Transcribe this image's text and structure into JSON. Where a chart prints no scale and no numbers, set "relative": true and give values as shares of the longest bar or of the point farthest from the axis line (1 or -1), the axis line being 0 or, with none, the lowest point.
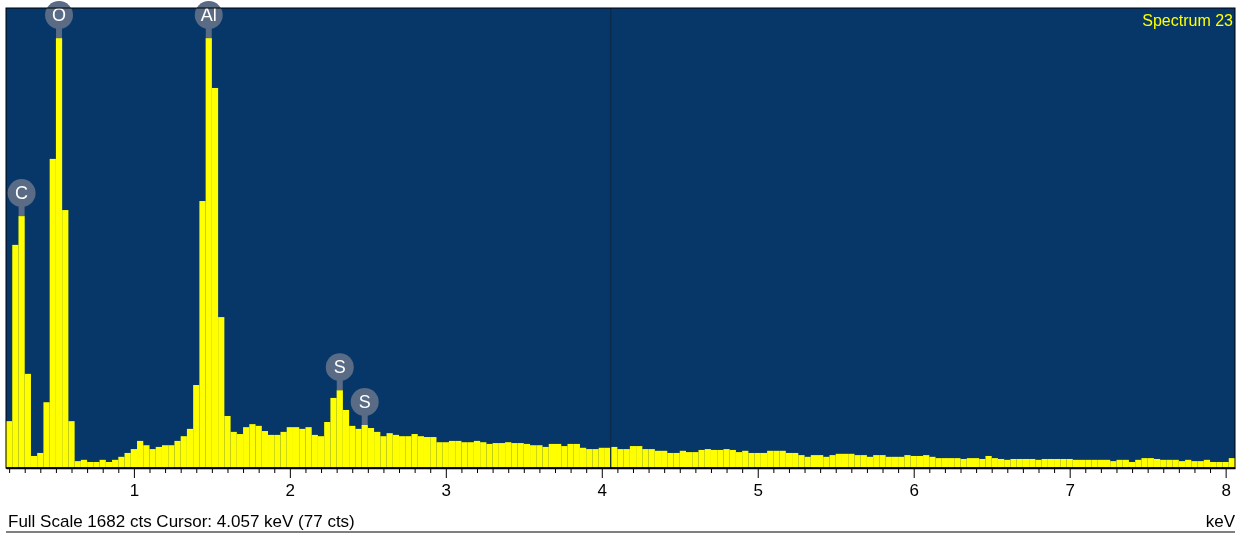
{
  "chart_data": {
    "type": "bar",
    "relative": true,
    "xlabel": "keV",
    "color": "#ffff00",
    "xlim": [
      0.18,
      8.06
    ],
    "xticks": [
      {
        "value": 0.2,
        "label": null
      },
      {
        "value": 0.3,
        "label": null
      },
      {
        "value": 0.4,
        "label": null
      },
      {
        "value": 0.5,
        "label": null
      },
      {
        "value": 0.6,
        "label": null
      },
      {
        "value": 0.7,
        "label": null
      },
      {
        "value": 0.8,
        "label": null
      },
      {
        "value": 0.9,
        "label": null
      },
      1,
      {
        "value": 1.1,
        "label": null
      },
      {
        "value": 1.2,
        "label": null
      },
      {
        "value": 1.3,
        "label": null
      },
      {
        "value": 1.4,
        "label": null
      },
      {
        "value": 1.5,
        "label": null
      },
      {
        "value": 1.6,
        "label": null
      },
      {
        "value": 1.7,
        "label": null
      },
      {
        "value": 1.8,
        "label": null
      },
      {
        "value": 1.9,
        "label": null
      },
      2,
      {
        "value": 2.1,
        "label": null
      },
      {
        "value": 2.2,
        "label": null
      },
      {
        "value": 2.3,
        "label": null
      },
      {
        "value": 2.4,
        "label": null
      },
      {
        "value": 2.5,
        "label": null
      },
      {
        "value": 2.6,
        "label": null
      },
      {
        "value": 2.7,
        "label": null
      },
      {
        "value": 2.8,
        "label": null
      },
      {
        "value": 2.9,
        "label": null
      },
      3,
      {
        "value": 3.1,
        "label": null
      },
      {
        "value": 3.2,
        "label": null
      },
      {
        "value": 3.3,
        "label": null
      },
      {
        "value": 3.4,
        "label": null
      },
      {
        "value": 3.5,
        "label": null
      },
      {
        "value": 3.6,
        "label": null
      },
      {
        "value": 3.7,
        "label": null
      },
      {
        "value": 3.8,
        "label": null
      },
      {
        "value": 3.9,
        "label": null
      },
      4,
      {
        "value": 4.1,
        "label": null
      },
      {
        "value": 4.2,
        "label": null
      },
      {
        "value": 4.3,
        "label": null
      },
      {
        "value": 4.4,
        "label": null
      },
      {
        "value": 4.5,
        "label": null
      },
      {
        "value": 4.6,
        "label": null
      },
      {
        "value": 4.7,
        "label": null
      },
      {
        "value": 4.8,
        "label": null
      },
      {
        "value": 4.9,
        "label": null
      },
      5,
      {
        "value": 5.1,
        "label": null
      },
      {
        "value": 5.2,
        "label": null
      },
      {
        "value": 5.3,
        "label": null
      },
      {
        "value": 5.4,
        "label": null
      },
      {
        "value": 5.5,
        "label": null
      },
      {
        "value": 5.6,
        "label": null
      },
      {
        "value": 5.7,
        "label": null
      },
      {
        "value": 5.8,
        "label": null
      },
      {
        "value": 5.9,
        "label": null
      },
      6,
      {
        "value": 6.1,
        "label": null
      },
      {
        "value": 6.2,
        "label": null
      },
      {
        "value": 6.3,
        "label": null
      },
      {
        "value": 6.4,
        "label": null
      },
      {
        "value": 6.5,
        "label": null
      },
      {
        "value": 6.6,
        "label": null
      },
      {
        "value": 6.7,
        "label": null
      },
      {
        "value": 6.8,
        "label": null
      },
      {
        "value": 6.9,
        "label": null
      },
      7,
      {
        "value": 7.1,
        "label": null
      },
      {
        "value": 7.2,
        "label": null
      },
      {
        "value": 7.3,
        "label": null
      },
      {
        "value": 7.4,
        "label": null
      },
      {
        "value": 7.5,
        "label": null
      },
      {
        "value": 7.6,
        "label": null
      },
      {
        "value": 7.7,
        "label": null
      },
      {
        "value": 7.8,
        "label": null
      },
      {
        "value": 7.9,
        "label": null
      },
      8
    ],
    "x": [
      0.2,
      0.24,
      0.28,
      0.32,
      0.36,
      0.4,
      0.44,
      0.48,
      0.52,
      0.56,
      0.6,
      0.64,
      0.68,
      0.72,
      0.76,
      0.8,
      0.84,
      0.88,
      0.92,
      0.96,
      1.0,
      1.04,
      1.08,
      1.12,
      1.16,
      1.2,
      1.24,
      1.28,
      1.32,
      1.36,
      1.4,
      1.44,
      1.48,
      1.52,
      1.56,
      1.6,
      1.64,
      1.68,
      1.72,
      1.76,
      1.8,
      1.84,
      1.88,
      1.92,
      1.96,
      2.0,
      2.04,
      2.08,
      2.12,
      2.16,
      2.2,
      2.24,
      2.28,
      2.32,
      2.36,
      2.4,
      2.44,
      2.48,
      2.52,
      2.56,
      2.6,
      2.64,
      2.68,
      2.72,
      2.76,
      2.8,
      2.84,
      2.88,
      2.92,
      2.96,
      3.0,
      3.04,
      3.08,
      3.12,
      3.16,
      3.2,
      3.24,
      3.28,
      3.32,
      3.36,
      3.4,
      3.44,
      3.48,
      3.52,
      3.56,
      3.6,
      3.64,
      3.68,
      3.72,
      3.76,
      3.8,
      3.84,
      3.88,
      3.92,
      3.96,
      4.0,
      4.04,
      4.08,
      4.12,
      4.16,
      4.2,
      4.24,
      4.28,
      4.32,
      4.36,
      4.4,
      4.44,
      4.48,
      4.52,
      4.56,
      4.6,
      4.64,
      4.68,
      4.72,
      4.76,
      4.8,
      4.84,
      4.88,
      4.92,
      4.96,
      5.0,
      5.04,
      5.08,
      5.12,
      5.16,
      5.2,
      5.24,
      5.28,
      5.32,
      5.36,
      5.4,
      5.44,
      5.48,
      5.52,
      5.56,
      5.6,
      5.64,
      5.68,
      5.72,
      5.76,
      5.8,
      5.84,
      5.88,
      5.92,
      5.96,
      6.0,
      6.04,
      6.08,
      6.12,
      6.16,
      6.2,
      6.24,
      6.28,
      6.32,
      6.36,
      6.4,
      6.44,
      6.48,
      6.52,
      6.56,
      6.6,
      6.64,
      6.68,
      6.72,
      6.76,
      6.8,
      6.84,
      6.88,
      6.92,
      6.96,
      7.0,
      7.04,
      7.08,
      7.12,
      7.16,
      7.2,
      7.24,
      7.28,
      7.32,
      7.36,
      7.4,
      7.44,
      7.48,
      7.52,
      7.56,
      7.6,
      7.64,
      7.68,
      7.72,
      7.76,
      7.8,
      7.84,
      7.88,
      7.92,
      7.96,
      8.0,
      8.04
    ],
    "values": [
      0.109,
      0.519,
      0.586,
      0.219,
      0.028,
      0.035,
      0.153,
      0.719,
      1,
      0.6,
      0.109,
      0.016,
      0.019,
      0.014,
      0.014,
      0.019,
      0.014,
      0.019,
      0.026,
      0.035,
      0.044,
      0.063,
      0.053,
      0.044,
      0.049,
      0.053,
      0.053,
      0.063,
      0.074,
      0.091,
      0.193,
      0.621,
      1,
      0.884,
      0.351,
      0.121,
      0.084,
      0.079,
      0.095,
      0.102,
      0.098,
      0.086,
      0.077,
      0.077,
      0.084,
      0.095,
      0.095,
      0.091,
      0.095,
      0.077,
      0.074,
      0.107,
      0.163,
      0.181,
      0.135,
      0.098,
      0.091,
      0.1,
      0.093,
      0.084,
      0.074,
      0.081,
      0.077,
      0.074,
      0.074,
      0.079,
      0.074,
      0.072,
      0.072,
      0.06,
      0.06,
      0.063,
      0.063,
      0.06,
      0.06,
      0.063,
      0.06,
      0.056,
      0.058,
      0.058,
      0.06,
      0.058,
      0.058,
      0.056,
      0.053,
      0.053,
      0.049,
      0.056,
      0.056,
      0.051,
      0.056,
      0.056,
      0.047,
      0.044,
      0.044,
      0.047,
      0.047,
      0.049,
      0.044,
      0.044,
      0.051,
      0.051,
      0.044,
      0.044,
      0.04,
      0.04,
      0.035,
      0.035,
      0.04,
      0.037,
      0.037,
      0.042,
      0.044,
      0.042,
      0.042,
      0.044,
      0.042,
      0.037,
      0.04,
      0.035,
      0.035,
      0.035,
      0.04,
      0.04,
      0.04,
      0.035,
      0.035,
      0.03,
      0.026,
      0.03,
      0.03,
      0.026,
      0.03,
      0.033,
      0.033,
      0.033,
      0.03,
      0.03,
      0.026,
      0.03,
      0.03,
      0.026,
      0.026,
      0.026,
      0.03,
      0.028,
      0.028,
      0.03,
      0.026,
      0.023,
      0.023,
      0.023,
      0.023,
      0.021,
      0.023,
      0.023,
      0.021,
      0.028,
      0.023,
      0.021,
      0.019,
      0.021,
      0.021,
      0.021,
      0.021,
      0.019,
      0.021,
      0.021,
      0.021,
      0.021,
      0.021,
      0.019,
      0.019,
      0.019,
      0.019,
      0.019,
      0.019,
      0.016,
      0.019,
      0.019,
      0.014,
      0.019,
      0.023,
      0.023,
      0.021,
      0.019,
      0.019,
      0.019,
      0.016,
      0.019,
      0.016,
      0.016,
      0.019,
      0.014,
      0.014,
      0.014,
      0.023
    ],
    "ref_lines": [
      {
        "axis": "x",
        "value": 4.057,
        "color": "#0a2a48"
      }
    ],
    "annotations": [
      "Spectrum 23",
      "Full Scale 1682 cts  Cursor: 4.057 keV (77 cts)",
      {
        "text": "C",
        "x": 0.28,
        "y": 0.586
      },
      {
        "text": "O",
        "x": 0.52,
        "y": 1
      },
      {
        "text": "Al",
        "x": 1.48,
        "y": 1
      },
      {
        "text": "S",
        "x": 2.32,
        "y": 0.181
      },
      {
        "text": "S",
        "x": 2.48,
        "y": 0.1
      }
    ]
  }
}
